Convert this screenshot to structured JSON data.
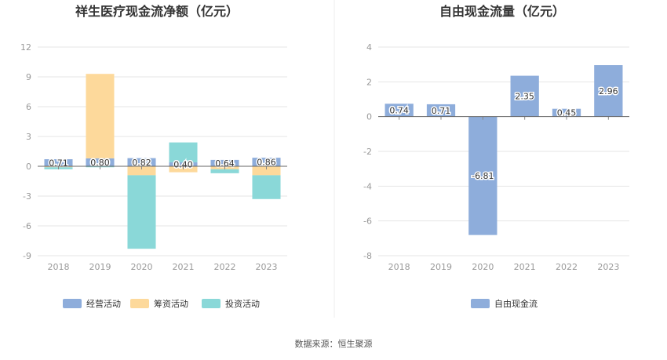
{
  "footer": "数据来源：恒生聚源",
  "colors": {
    "operating": "#8eaddb",
    "financing": "#fdd99b",
    "investing": "#8ad8d8",
    "free_cash_flow": "#8eaddb"
  },
  "chart_data": [
    {
      "type": "bar",
      "stacked": true,
      "title": "祥生医疗现金流净额（亿元）",
      "categories": [
        "2018",
        "2019",
        "2020",
        "2021",
        "2022",
        "2023"
      ],
      "yticks": [
        12,
        9,
        6,
        3,
        0,
        -3,
        -6,
        -9
      ],
      "ylim": [
        -9,
        12
      ],
      "grid": true,
      "legend_position": "bottom",
      "series": [
        {
          "name": "经营活动",
          "color_key": "operating",
          "values": [
            0.71,
            0.8,
            0.82,
            0.4,
            0.64,
            0.86
          ],
          "labels": [
            "0.71",
            "0.80",
            "0.82",
            "0.40",
            "0.64",
            "0.86"
          ]
        },
        {
          "name": "筹资活动",
          "color_key": "financing",
          "values": [
            -0.1,
            8.5,
            -0.9,
            -0.6,
            -0.3,
            -0.9
          ]
        },
        {
          "name": "投资活动",
          "color_key": "investing",
          "values": [
            -0.2,
            -0.1,
            -7.4,
            2.0,
            -0.4,
            -2.4
          ]
        }
      ]
    },
    {
      "type": "bar",
      "title": "自由现金流量（亿元）",
      "categories": [
        "2018",
        "2019",
        "2020",
        "2021",
        "2022",
        "2023"
      ],
      "yticks": [
        4,
        2,
        0,
        -2,
        -4,
        -6,
        -8
      ],
      "ylim": [
        -8,
        4
      ],
      "grid": true,
      "legend_position": "bottom",
      "series": [
        {
          "name": "自由现金流",
          "color_key": "free_cash_flow",
          "values": [
            0.74,
            0.71,
            -6.81,
            2.35,
            0.45,
            2.96
          ],
          "labels": [
            "0.74",
            "0.71",
            "-6.81",
            "2.35",
            "0.45",
            "2.96"
          ]
        }
      ]
    }
  ]
}
